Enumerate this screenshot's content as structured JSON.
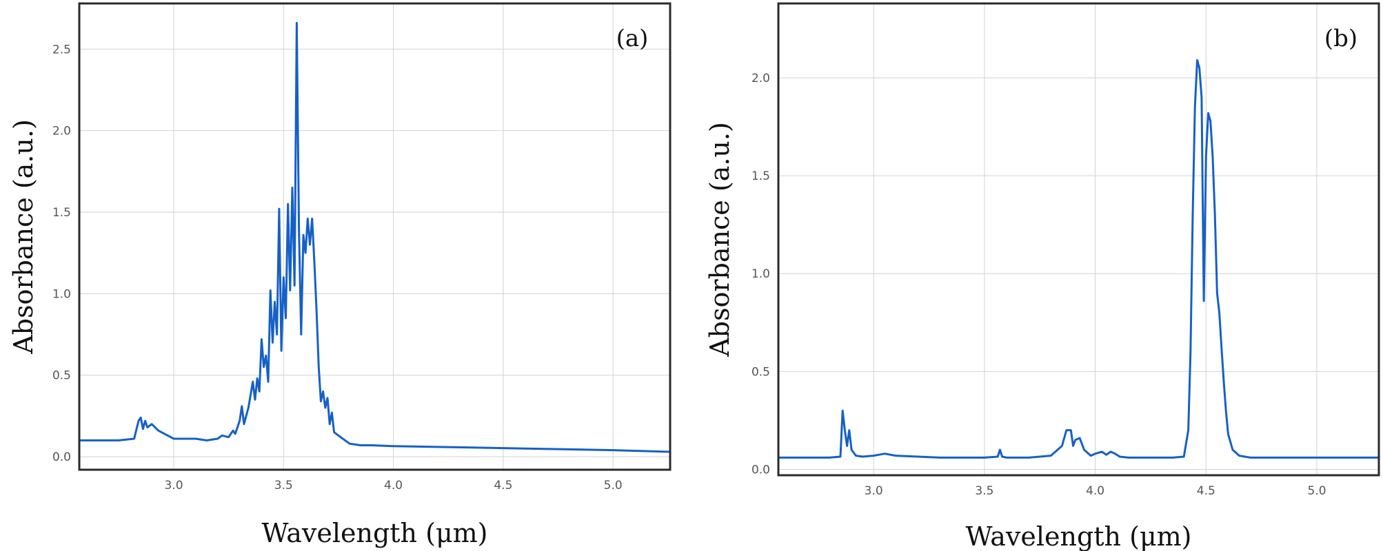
{
  "chart_data": [
    {
      "type": "line",
      "panel_label": "(a)",
      "xlabel": "Wavelength (μm)",
      "ylabel": "Absorbance (a.u.)",
      "xlim": [
        2.57,
        5.26
      ],
      "ylim": [
        -0.08,
        2.78
      ],
      "xticks": [
        3.0,
        3.5,
        4.0,
        4.5,
        5.0
      ],
      "xtick_labels": [
        "3.0",
        "3.5",
        "4.0",
        "4.5",
        "5.0"
      ],
      "yticks": [
        0.0,
        0.5,
        1.0,
        1.5,
        2.0,
        2.5
      ],
      "ytick_labels": [
        "0.0",
        "0.5",
        "1.0",
        "1.5",
        "2.0",
        "2.5"
      ],
      "grid": true,
      "line_color": "#1560c8",
      "series": [
        {
          "x": [
            2.57,
            2.65,
            2.75,
            2.82,
            2.84,
            2.85,
            2.86,
            2.87,
            2.88,
            2.9,
            2.93,
            3.0,
            3.1,
            3.15,
            3.2,
            3.22,
            3.25,
            3.27,
            3.28,
            3.3,
            3.31,
            3.32,
            3.34,
            3.35,
            3.36,
            3.37,
            3.38,
            3.39,
            3.4,
            3.41,
            3.42,
            3.43,
            3.44,
            3.45,
            3.46,
            3.47,
            3.48,
            3.49,
            3.5,
            3.51,
            3.52,
            3.53,
            3.54,
            3.55,
            3.56,
            3.57,
            3.58,
            3.59,
            3.6,
            3.61,
            3.62,
            3.63,
            3.64,
            3.65,
            3.66,
            3.67,
            3.68,
            3.69,
            3.7,
            3.71,
            3.72,
            3.73,
            3.75,
            3.8,
            3.85,
            3.9,
            4.0,
            4.2,
            4.4,
            4.6,
            4.8,
            5.0,
            5.26
          ],
          "y": [
            0.1,
            0.1,
            0.1,
            0.11,
            0.22,
            0.24,
            0.17,
            0.22,
            0.18,
            0.2,
            0.16,
            0.11,
            0.11,
            0.1,
            0.11,
            0.13,
            0.12,
            0.16,
            0.14,
            0.22,
            0.31,
            0.2,
            0.3,
            0.38,
            0.46,
            0.35,
            0.48,
            0.4,
            0.72,
            0.55,
            0.62,
            0.46,
            1.02,
            0.7,
            0.95,
            0.75,
            1.52,
            0.65,
            1.1,
            0.85,
            1.55,
            1.02,
            1.65,
            1.05,
            2.66,
            1.4,
            0.75,
            1.36,
            1.25,
            1.46,
            1.3,
            1.46,
            1.2,
            0.9,
            0.55,
            0.34,
            0.4,
            0.3,
            0.36,
            0.2,
            0.27,
            0.15,
            0.13,
            0.08,
            0.07,
            0.07,
            0.065,
            0.06,
            0.055,
            0.05,
            0.045,
            0.04,
            0.03
          ]
        }
      ]
    },
    {
      "type": "line",
      "panel_label": "(b)",
      "xlabel": "Wavelength (μm)",
      "ylabel": "Absorbance (a.u.)",
      "xlim": [
        2.57,
        5.28
      ],
      "ylim": [
        -0.03,
        2.38
      ],
      "xticks": [
        3.0,
        3.5,
        4.0,
        4.5,
        5.0
      ],
      "xtick_labels": [
        "3.0",
        "3.5",
        "4.0",
        "4.5",
        "5.0"
      ],
      "yticks": [
        0.0,
        0.5,
        1.0,
        1.5,
        2.0
      ],
      "ytick_labels": [
        "0.0",
        "0.5",
        "1.0",
        "1.5",
        "2.0"
      ],
      "grid": true,
      "line_color": "#1560c8",
      "series": [
        {
          "x": [
            2.57,
            2.7,
            2.8,
            2.85,
            2.86,
            2.87,
            2.88,
            2.89,
            2.9,
            2.92,
            2.95,
            3.0,
            3.05,
            3.1,
            3.2,
            3.3,
            3.4,
            3.5,
            3.56,
            3.57,
            3.58,
            3.6,
            3.7,
            3.8,
            3.85,
            3.87,
            3.89,
            3.9,
            3.91,
            3.93,
            3.95,
            3.98,
            4.0,
            4.03,
            4.05,
            4.07,
            4.09,
            4.11,
            4.15,
            4.25,
            4.35,
            4.4,
            4.42,
            4.43,
            4.44,
            4.45,
            4.46,
            4.47,
            4.48,
            4.49,
            4.5,
            4.51,
            4.52,
            4.53,
            4.54,
            4.55,
            4.56,
            4.57,
            4.58,
            4.59,
            4.6,
            4.62,
            4.65,
            4.7,
            4.8,
            5.0,
            5.28
          ],
          "y": [
            0.06,
            0.06,
            0.06,
            0.065,
            0.3,
            0.2,
            0.12,
            0.2,
            0.1,
            0.07,
            0.065,
            0.07,
            0.08,
            0.07,
            0.065,
            0.06,
            0.06,
            0.06,
            0.065,
            0.1,
            0.065,
            0.06,
            0.06,
            0.07,
            0.12,
            0.2,
            0.2,
            0.12,
            0.15,
            0.16,
            0.1,
            0.07,
            0.08,
            0.09,
            0.075,
            0.09,
            0.08,
            0.065,
            0.06,
            0.06,
            0.06,
            0.065,
            0.2,
            0.6,
            1.3,
            1.85,
            2.09,
            2.05,
            1.9,
            0.86,
            1.6,
            1.82,
            1.78,
            1.6,
            1.3,
            0.9,
            0.8,
            0.62,
            0.45,
            0.3,
            0.18,
            0.1,
            0.07,
            0.06,
            0.06,
            0.06,
            0.06
          ]
        }
      ]
    }
  ]
}
